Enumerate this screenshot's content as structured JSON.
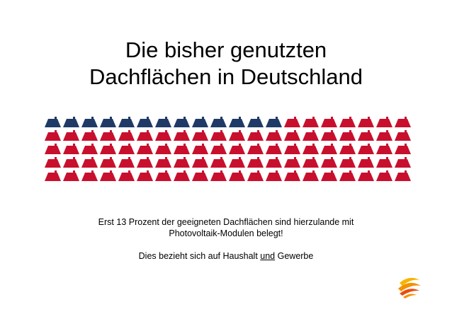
{
  "title": {
    "line1": "Die bisher genutzten",
    "line2": "Dachflächen in Deutschland"
  },
  "roof_grid": {
    "rows": 5,
    "columns": 20,
    "used_count": 13,
    "used_color": "#1f3a66",
    "unused_color": "#c8102e"
  },
  "caption": {
    "line1": "Erst 13 Prozent der geeigneten Dachflächen sind hierzulande mit",
    "line2": "Photovoltaik-Modulen belegt!",
    "line3_before": "Dies bezieht sich auf Haushalt ",
    "line3_underlined": "und",
    "line3_after": " Gewerbe"
  },
  "logo": {
    "icon": "sun-swirl-logo-icon",
    "colors": [
      "#f39200",
      "#e84e0f",
      "#f7b500"
    ]
  }
}
